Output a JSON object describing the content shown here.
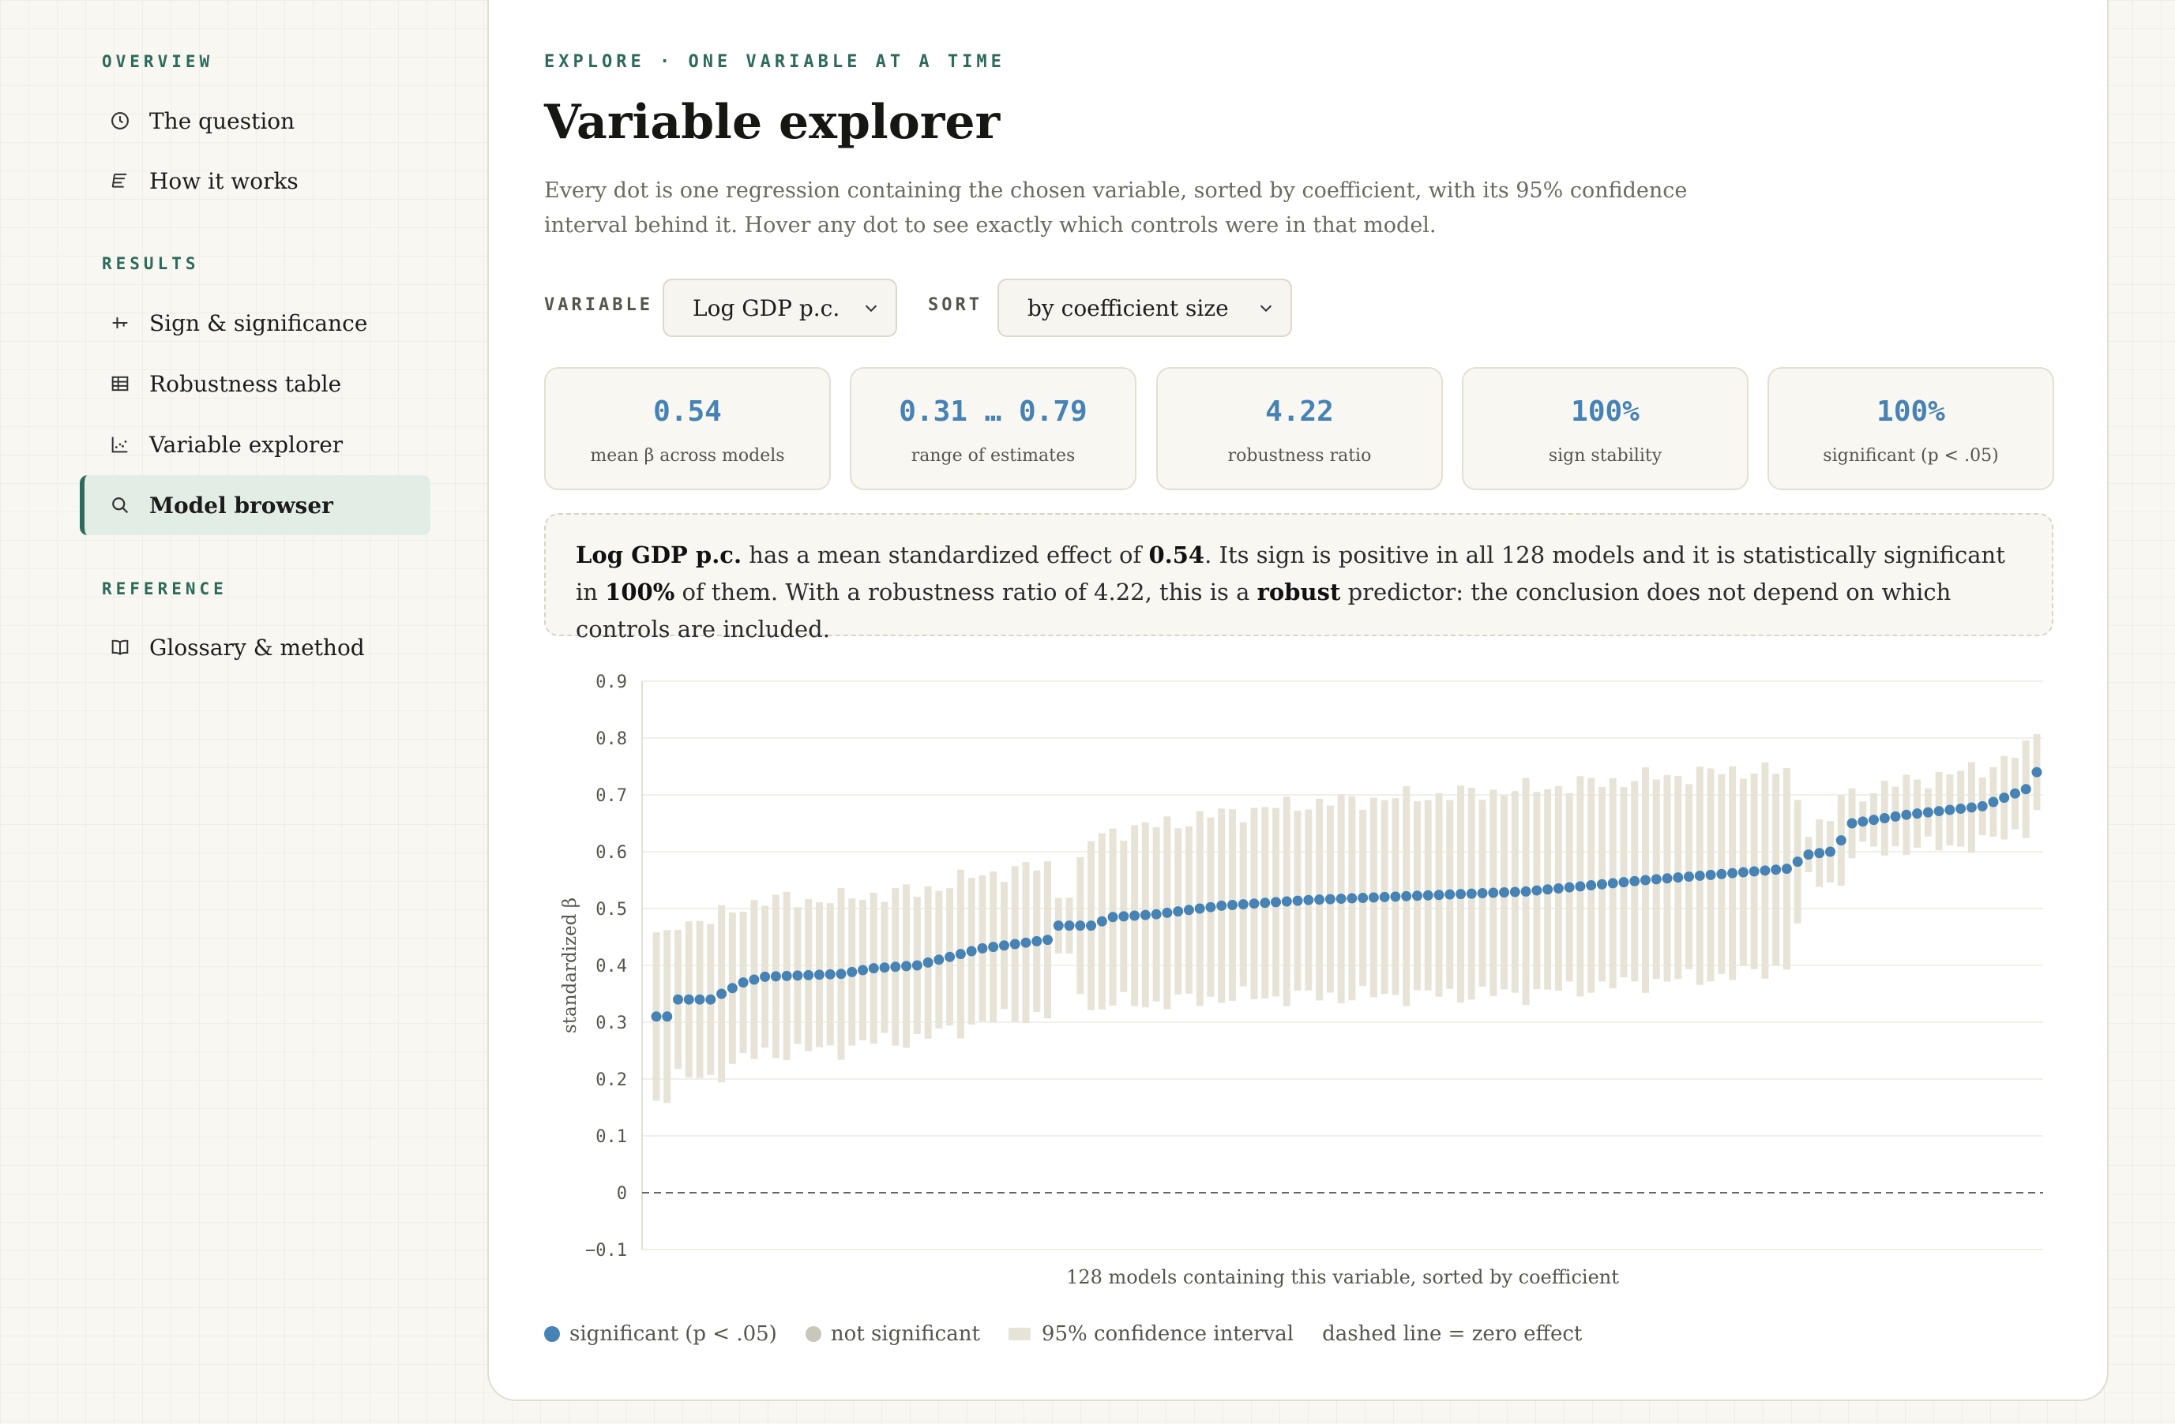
{
  "sidebar": {
    "sections": [
      {
        "label": "OVERVIEW",
        "items": [
          {
            "label": "The question",
            "icon": "clock-icon"
          },
          {
            "label": "How it works",
            "icon": "text-lines-icon"
          }
        ]
      },
      {
        "label": "RESULTS",
        "items": [
          {
            "label": "Sign & significance",
            "icon": "axes-icon"
          },
          {
            "label": "Robustness table",
            "icon": "table-icon"
          },
          {
            "label": "Variable explorer",
            "icon": "scatter-icon"
          },
          {
            "label": "Model browser",
            "icon": "search-icon",
            "active": true
          }
        ]
      },
      {
        "label": "REFERENCE",
        "items": [
          {
            "label": "Glossary & method",
            "icon": "book-icon"
          }
        ]
      }
    ]
  },
  "main": {
    "eyebrow": "EXPLORE · ONE VARIABLE AT A TIME",
    "title": "Variable explorer",
    "description": "Every dot is one regression containing the chosen variable, sorted by coefficient, with its 95% confidence interval behind it. Hover any dot to see exactly which controls were in that model.",
    "controls": {
      "variable_label": "VARIABLE",
      "variable_value": "Log GDP p.c.",
      "sort_label": "SORT",
      "sort_value": "by coefficient size"
    },
    "stats": [
      {
        "value": "0.54",
        "label": "mean β across models"
      },
      {
        "value": "0.31 … 0.79",
        "label": "range of estimates"
      },
      {
        "value": "4.22",
        "label": "robustness ratio"
      },
      {
        "value": "100%",
        "label": "sign stability"
      },
      {
        "value": "100%",
        "label": "significant (p < .05)"
      }
    ],
    "summary": {
      "var": "Log GDP p.c.",
      "t1": " has a mean standardized effect of ",
      "mean": "0.54",
      "t2": ". Its sign is positive in all 128 models and it is statistically significant in ",
      "pct": "100%",
      "t3": " of them. With a robustness ratio of 4.22, this is a ",
      "verdict": "robust",
      "t4": " predictor: the conclusion does not depend on which controls are included."
    },
    "legend": {
      "significant": "significant (p < .05)",
      "not_significant": "not significant",
      "ci": "95% confidence interval",
      "zero": "dashed line = zero effect"
    }
  },
  "colors": {
    "accent": "#2e6a5a",
    "significant": "#4682b4",
    "not_significant": "#c9c7bb",
    "ci_bar": "#e7e4d7"
  },
  "chart_data": {
    "type": "scatter",
    "ylabel": "standardized β",
    "xlabel": "128 models containing this variable, sorted by coefficient",
    "ylim": [
      -0.1,
      0.9
    ],
    "yticks": [
      "0.9",
      "0.8",
      "0.7",
      "0.6",
      "0.5",
      "0.4",
      "0.3",
      "0.2",
      "0.1",
      "0",
      "−0.1"
    ],
    "zero_line": 0,
    "grid": true,
    "n_models": 128,
    "coef_anchors": [
      [
        0,
        0.31
      ],
      [
        1,
        0.31
      ],
      [
        2,
        0.34
      ],
      [
        5,
        0.34
      ],
      [
        8,
        0.37
      ],
      [
        10,
        0.38
      ],
      [
        17,
        0.385
      ],
      [
        20,
        0.395
      ],
      [
        24,
        0.4
      ],
      [
        27,
        0.415
      ],
      [
        30,
        0.43
      ],
      [
        36,
        0.445
      ],
      [
        37,
        0.47
      ],
      [
        40,
        0.47
      ],
      [
        42,
        0.485
      ],
      [
        46,
        0.49
      ],
      [
        52,
        0.505
      ],
      [
        60,
        0.515
      ],
      [
        80,
        0.53
      ],
      [
        91,
        0.55
      ],
      [
        104,
        0.57
      ],
      [
        106,
        0.595
      ],
      [
        108,
        0.6
      ],
      [
        109,
        0.62
      ],
      [
        110,
        0.65
      ],
      [
        115,
        0.665
      ],
      [
        122,
        0.68
      ],
      [
        126,
        0.71
      ],
      [
        127,
        0.74
      ],
      [
        128,
        0.79
      ]
    ],
    "ci_halfwidth_anchors": [
      [
        0,
        0.14
      ],
      [
        20,
        0.13
      ],
      [
        36,
        0.13
      ],
      [
        37,
        0.06
      ],
      [
        38,
        0.06
      ],
      [
        40,
        0.15
      ],
      [
        60,
        0.17
      ],
      [
        80,
        0.18
      ],
      [
        100,
        0.18
      ],
      [
        104,
        0.17
      ],
      [
        106,
        0.05
      ],
      [
        108,
        0.05
      ],
      [
        109,
        0.08
      ],
      [
        110,
        0.05
      ],
      [
        116,
        0.06
      ],
      [
        126,
        0.07
      ],
      [
        128,
        0.06
      ]
    ],
    "all_significant": true
  }
}
